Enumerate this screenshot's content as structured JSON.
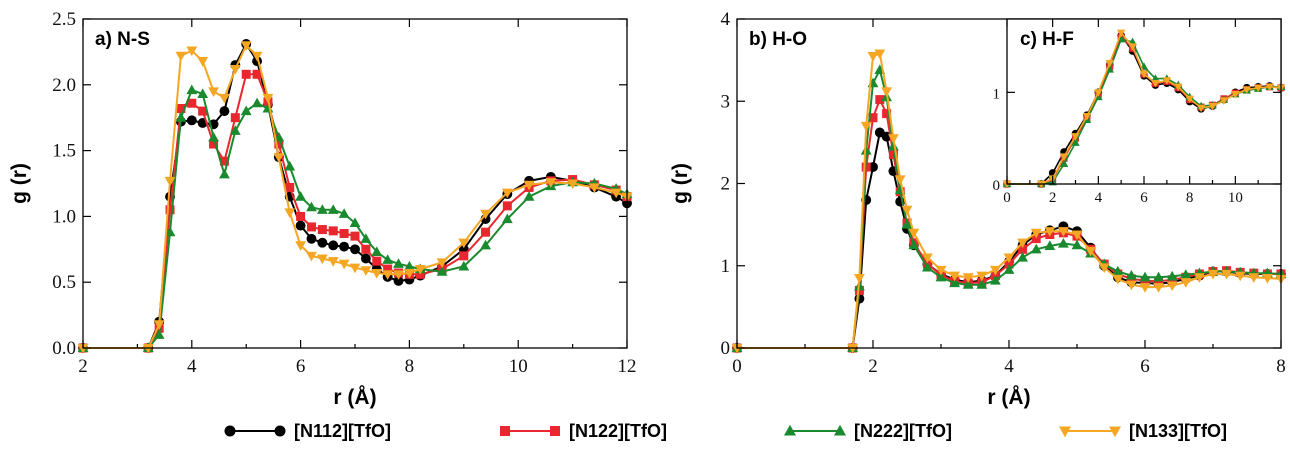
{
  "legend": {
    "items": [
      {
        "label": "[N112][TfO]",
        "color": "#000000",
        "marker": "circle"
      },
      {
        "label": "[N122][TfO]",
        "color": "#e8282e",
        "marker": "square"
      },
      {
        "label": "[N222][TfO]",
        "color": "#1a8a2e",
        "marker": "triangle-up"
      },
      {
        "label": "[N133][TfO]",
        "color": "#f5a623",
        "marker": "triangle-down"
      }
    ]
  },
  "chart_data": [
    {
      "id": "panel-a",
      "type": "line",
      "panel_label": "a) N-S",
      "xlabel": "r (Å)",
      "ylabel": "g (r)",
      "xlim": [
        2,
        12
      ],
      "ylim": [
        0,
        2.5
      ],
      "xticks": [
        "2",
        "4",
        "6",
        "8",
        "10",
        "12"
      ],
      "yticks": [
        "0.0",
        "0.5",
        "1.0",
        "1.5",
        "2.0",
        "2.5"
      ],
      "series": [
        {
          "name": "[N112][TfO]",
          "x": [
            2,
            3.2,
            3.4,
            3.6,
            3.8,
            4.0,
            4.2,
            4.4,
            4.6,
            4.8,
            5.0,
            5.2,
            5.4,
            5.6,
            5.8,
            6.0,
            6.2,
            6.4,
            6.6,
            6.8,
            7.0,
            7.2,
            7.4,
            7.6,
            7.8,
            8.0,
            8.2,
            8.6,
            9.0,
            9.4,
            9.8,
            10.2,
            10.6,
            11.0,
            11.4,
            11.8,
            12.0
          ],
          "y": [
            0.0,
            0.0,
            0.2,
            1.15,
            1.72,
            1.73,
            1.71,
            1.7,
            1.8,
            2.15,
            2.31,
            2.18,
            1.85,
            1.45,
            1.15,
            0.93,
            0.83,
            0.8,
            0.78,
            0.77,
            0.75,
            0.68,
            0.6,
            0.54,
            0.51,
            0.52,
            0.55,
            0.62,
            0.75,
            0.98,
            1.17,
            1.27,
            1.3,
            1.27,
            1.22,
            1.15,
            1.1
          ]
        },
        {
          "name": "[N122][TfO]",
          "x": [
            2,
            3.2,
            3.4,
            3.6,
            3.8,
            4.0,
            4.2,
            4.4,
            4.6,
            4.8,
            5.0,
            5.2,
            5.4,
            5.6,
            5.8,
            6.0,
            6.2,
            6.4,
            6.6,
            6.8,
            7.0,
            7.2,
            7.4,
            7.6,
            7.8,
            8.0,
            8.2,
            8.6,
            9.0,
            9.4,
            9.8,
            10.2,
            10.6,
            11.0,
            11.4,
            11.8,
            12.0
          ],
          "y": [
            0.0,
            0.0,
            0.15,
            1.05,
            1.82,
            1.86,
            1.8,
            1.55,
            1.42,
            1.75,
            2.08,
            2.08,
            1.87,
            1.55,
            1.22,
            1.0,
            0.92,
            0.9,
            0.89,
            0.87,
            0.85,
            0.75,
            0.66,
            0.6,
            0.57,
            0.56,
            0.56,
            0.6,
            0.7,
            0.88,
            1.08,
            1.22,
            1.27,
            1.28,
            1.24,
            1.2,
            1.15
          ]
        },
        {
          "name": "[N222][TfO]",
          "x": [
            2,
            3.2,
            3.4,
            3.6,
            3.8,
            4.0,
            4.2,
            4.4,
            4.6,
            4.8,
            5.0,
            5.2,
            5.4,
            5.6,
            5.8,
            6.0,
            6.2,
            6.4,
            6.6,
            6.8,
            7.0,
            7.2,
            7.4,
            7.6,
            7.8,
            8.0,
            8.2,
            8.6,
            9.0,
            9.4,
            9.8,
            10.2,
            10.6,
            11.0,
            11.4,
            11.8,
            12.0
          ],
          "y": [
            0.0,
            0.0,
            0.1,
            0.88,
            1.75,
            1.96,
            1.93,
            1.6,
            1.32,
            1.65,
            1.8,
            1.86,
            1.82,
            1.6,
            1.38,
            1.15,
            1.07,
            1.05,
            1.05,
            1.02,
            0.95,
            0.83,
            0.73,
            0.67,
            0.64,
            0.62,
            0.6,
            0.58,
            0.62,
            0.78,
            0.98,
            1.15,
            1.23,
            1.26,
            1.25,
            1.21,
            1.17
          ]
        },
        {
          "name": "[N133][TfO]",
          "x": [
            2,
            3.2,
            3.4,
            3.6,
            3.8,
            4.0,
            4.2,
            4.4,
            4.6,
            4.8,
            5.0,
            5.2,
            5.4,
            5.6,
            5.8,
            6.0,
            6.2,
            6.4,
            6.6,
            6.8,
            7.0,
            7.2,
            7.4,
            7.6,
            7.8,
            8.0,
            8.2,
            8.6,
            9.0,
            9.4,
            9.8,
            10.2,
            10.6,
            11.0,
            11.4,
            11.8,
            12.0
          ],
          "y": [
            0.0,
            0.0,
            0.18,
            1.27,
            2.22,
            2.26,
            2.18,
            1.95,
            1.9,
            2.12,
            2.3,
            2.22,
            1.9,
            1.45,
            1.03,
            0.78,
            0.7,
            0.68,
            0.66,
            0.64,
            0.61,
            0.59,
            0.57,
            0.56,
            0.56,
            0.57,
            0.6,
            0.65,
            0.8,
            1.02,
            1.18,
            1.24,
            1.26,
            1.25,
            1.22,
            1.18,
            1.15
          ]
        }
      ]
    },
    {
      "id": "panel-b",
      "type": "line",
      "panel_label": "b) H-O",
      "xlabel": "r (Å)",
      "ylabel": "g (r)",
      "xlim": [
        0,
        8
      ],
      "ylim": [
        0,
        4
      ],
      "xticks": [
        "0",
        "2",
        "4",
        "6",
        "8"
      ],
      "yticks": [
        "0",
        "1",
        "2",
        "3",
        "4"
      ],
      "series": [
        {
          "name": "[N112][TfO]",
          "x": [
            0,
            1.7,
            1.8,
            1.9,
            2.0,
            2.1,
            2.2,
            2.3,
            2.4,
            2.5,
            2.6,
            2.8,
            3.0,
            3.2,
            3.4,
            3.6,
            3.8,
            4.0,
            4.2,
            4.4,
            4.6,
            4.8,
            5.0,
            5.2,
            5.4,
            5.6,
            5.8,
            6.0,
            6.2,
            6.4,
            6.6,
            6.8,
            7.0,
            7.2,
            7.4,
            7.6,
            7.8,
            8.0
          ],
          "y": [
            0.0,
            0.0,
            0.6,
            1.8,
            2.2,
            2.62,
            2.57,
            2.15,
            1.78,
            1.45,
            1.25,
            1.02,
            0.9,
            0.83,
            0.8,
            0.82,
            0.88,
            1.05,
            1.25,
            1.38,
            1.43,
            1.48,
            1.42,
            1.22,
            1.0,
            0.86,
            0.8,
            0.79,
            0.78,
            0.8,
            0.84,
            0.88,
            0.93,
            0.93,
            0.91,
            0.9,
            0.9,
            0.9
          ]
        },
        {
          "name": "[N122][TfO]",
          "x": [
            0,
            1.7,
            1.8,
            1.9,
            2.0,
            2.1,
            2.2,
            2.3,
            2.4,
            2.5,
            2.6,
            2.8,
            3.0,
            3.2,
            3.4,
            3.6,
            3.8,
            4.0,
            4.2,
            4.4,
            4.6,
            4.8,
            5.0,
            5.2,
            5.4,
            5.6,
            5.8,
            6.0,
            6.2,
            6.4,
            6.6,
            6.8,
            7.0,
            7.2,
            7.4,
            7.6,
            7.8,
            8.0
          ],
          "y": [
            0.0,
            0.0,
            0.7,
            2.2,
            2.8,
            3.02,
            2.85,
            2.35,
            1.9,
            1.52,
            1.28,
            1.02,
            0.89,
            0.81,
            0.79,
            0.8,
            0.88,
            1.02,
            1.2,
            1.33,
            1.38,
            1.4,
            1.36,
            1.2,
            1.02,
            0.9,
            0.84,
            0.82,
            0.81,
            0.83,
            0.86,
            0.9,
            0.93,
            0.94,
            0.92,
            0.91,
            0.9,
            0.9
          ]
        },
        {
          "name": "[N222][TfO]",
          "x": [
            0,
            1.7,
            1.8,
            1.9,
            2.0,
            2.1,
            2.2,
            2.3,
            2.4,
            2.5,
            2.6,
            2.8,
            3.0,
            3.2,
            3.4,
            3.6,
            3.8,
            4.0,
            4.2,
            4.4,
            4.6,
            4.8,
            5.0,
            5.2,
            5.4,
            5.6,
            5.8,
            6.0,
            6.2,
            6.4,
            6.6,
            6.8,
            7.0,
            7.2,
            7.4,
            7.6,
            7.8,
            8.0
          ],
          "y": [
            0.0,
            0.0,
            0.75,
            2.4,
            3.22,
            3.38,
            3.05,
            2.45,
            1.92,
            1.5,
            1.25,
            0.98,
            0.86,
            0.79,
            0.77,
            0.77,
            0.82,
            0.95,
            1.1,
            1.2,
            1.24,
            1.27,
            1.25,
            1.15,
            1.02,
            0.93,
            0.88,
            0.86,
            0.86,
            0.87,
            0.89,
            0.91,
            0.93,
            0.93,
            0.92,
            0.91,
            0.91,
            0.9
          ]
        },
        {
          "name": "[N133][TfO]",
          "x": [
            0,
            1.7,
            1.8,
            1.9,
            2.0,
            2.1,
            2.2,
            2.3,
            2.4,
            2.5,
            2.6,
            2.8,
            3.0,
            3.2,
            3.4,
            3.6,
            3.8,
            4.0,
            4.2,
            4.4,
            4.6,
            4.8,
            5.0,
            5.2,
            5.4,
            5.6,
            5.8,
            6.0,
            6.2,
            6.4,
            6.6,
            6.8,
            7.0,
            7.2,
            7.4,
            7.6,
            7.8,
            8.0
          ],
          "y": [
            0.0,
            0.0,
            0.85,
            2.7,
            3.55,
            3.58,
            3.12,
            2.55,
            2.05,
            1.68,
            1.4,
            1.1,
            0.95,
            0.88,
            0.86,
            0.88,
            0.95,
            1.1,
            1.28,
            1.4,
            1.42,
            1.42,
            1.38,
            1.18,
            0.98,
            0.84,
            0.77,
            0.74,
            0.74,
            0.76,
            0.8,
            0.86,
            0.9,
            0.9,
            0.88,
            0.86,
            0.85,
            0.84
          ]
        }
      ]
    },
    {
      "id": "panel-c",
      "type": "line",
      "panel_label": "c) H-F",
      "xlabel": "",
      "ylabel": "",
      "xlim": [
        0,
        12
      ],
      "ylim": [
        0,
        1.8
      ],
      "xticks": [
        "0",
        "2",
        "4",
        "6",
        "8",
        "10"
      ],
      "yticks": [
        "0",
        "1"
      ],
      "series": [
        {
          "name": "[N112][TfO]",
          "x": [
            0,
            1.5,
            2.0,
            2.5,
            3.0,
            3.5,
            4.0,
            4.5,
            5.0,
            5.5,
            6.0,
            6.5,
            7.0,
            7.5,
            8.0,
            8.5,
            9.0,
            9.5,
            10.0,
            10.5,
            11.0,
            11.5,
            12.0
          ],
          "y": [
            0.0,
            0.0,
            0.12,
            0.35,
            0.55,
            0.75,
            1.0,
            1.3,
            1.62,
            1.45,
            1.18,
            1.08,
            1.1,
            1.03,
            0.9,
            0.82,
            0.85,
            0.92,
            1.0,
            1.05,
            1.06,
            1.07,
            1.05
          ]
        },
        {
          "name": "[N122][TfO]",
          "x": [
            0,
            1.5,
            2.0,
            2.5,
            3.0,
            3.5,
            4.0,
            4.5,
            5.0,
            5.5,
            6.0,
            6.5,
            7.0,
            7.5,
            8.0,
            8.5,
            9.0,
            9.5,
            10.0,
            10.5,
            11.0,
            11.5,
            12.0
          ],
          "y": [
            0.0,
            0.0,
            0.05,
            0.28,
            0.5,
            0.72,
            0.98,
            1.28,
            1.6,
            1.48,
            1.2,
            1.1,
            1.12,
            1.05,
            0.92,
            0.84,
            0.86,
            0.93,
            0.99,
            1.03,
            1.05,
            1.06,
            1.05
          ]
        },
        {
          "name": "[N222][TfO]",
          "x": [
            0,
            1.5,
            2.0,
            2.5,
            3.0,
            3.5,
            4.0,
            4.5,
            5.0,
            5.5,
            6.0,
            6.5,
            7.0,
            7.5,
            8.0,
            8.5,
            9.0,
            9.5,
            10.0,
            10.5,
            11.0,
            11.5,
            12.0
          ],
          "y": [
            0.0,
            0.0,
            0.02,
            0.22,
            0.45,
            0.7,
            0.95,
            1.25,
            1.58,
            1.55,
            1.28,
            1.15,
            1.15,
            1.08,
            0.95,
            0.85,
            0.86,
            0.92,
            0.98,
            1.02,
            1.04,
            1.06,
            1.06
          ]
        },
        {
          "name": "[N133][TfO]",
          "x": [
            0,
            1.5,
            2.0,
            2.5,
            3.0,
            3.5,
            4.0,
            4.5,
            5.0,
            5.5,
            6.0,
            6.5,
            7.0,
            7.5,
            8.0,
            8.5,
            9.0,
            9.5,
            10.0,
            10.5,
            11.0,
            11.5,
            12.0
          ],
          "y": [
            0.0,
            0.0,
            0.06,
            0.3,
            0.52,
            0.74,
            1.0,
            1.32,
            1.65,
            1.5,
            1.2,
            1.1,
            1.13,
            1.06,
            0.93,
            0.83,
            0.85,
            0.91,
            0.98,
            1.03,
            1.05,
            1.06,
            1.05
          ]
        }
      ]
    }
  ]
}
